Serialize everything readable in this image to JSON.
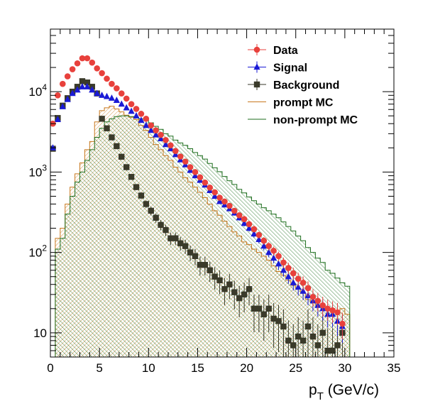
{
  "chart_data": {
    "type": "scatter",
    "title": "",
    "xlabel": "p",
    "xlabel_sub": "T",
    "xlabel_unit": " (GeV/c)",
    "ylabel": "",
    "xlim": [
      0,
      35
    ],
    "ylim": [
      5,
      60000
    ],
    "y_scale": "log",
    "grid": false,
    "legend_position": "top-right",
    "x_ticks": [
      0,
      5,
      10,
      15,
      20,
      25,
      30,
      35
    ],
    "x_tick_labels": [
      "0",
      "5",
      "10",
      "15",
      "20",
      "25",
      "30",
      "35"
    ],
    "y_ticks": [
      {
        "value": 10,
        "base": "10",
        "exp": ""
      },
      {
        "value": 100,
        "base": "10",
        "exp": "2"
      },
      {
        "value": 1000,
        "base": "10",
        "exp": "3"
      },
      {
        "value": 10000,
        "base": "10",
        "exp": "4"
      }
    ],
    "series": [
      {
        "name": "Data",
        "kind": "markers",
        "marker": "circle",
        "color": "#e8413c",
        "x": [
          0.25,
          0.75,
          1.25,
          1.75,
          2.25,
          2.75,
          3.25,
          3.75,
          4.25,
          4.75,
          5.25,
          5.75,
          6.25,
          6.75,
          7.25,
          7.75,
          8.25,
          8.75,
          9.25,
          9.75,
          10.25,
          10.75,
          11.25,
          11.75,
          12.25,
          12.75,
          13.25,
          13.75,
          14.25,
          14.75,
          15.25,
          15.75,
          16.25,
          16.75,
          17.25,
          17.75,
          18.25,
          18.75,
          19.25,
          19.75,
          20.25,
          20.75,
          21.25,
          21.75,
          22.25,
          22.75,
          23.25,
          23.75,
          24.25,
          24.75,
          25.25,
          25.75,
          26.25,
          26.75,
          27.25,
          27.75,
          28.25,
          28.75,
          29.25,
          29.75
        ],
        "y": [
          4000,
          9000,
          12500,
          15500,
          19000,
          22500,
          26000,
          26000,
          23000,
          19500,
          17000,
          14500,
          12500,
          11000,
          9500,
          8200,
          7000,
          6100,
          5300,
          4600,
          3800,
          3300,
          2900,
          2500,
          2150,
          1830,
          1560,
          1350,
          1150,
          1000,
          860,
          740,
          640,
          560,
          480,
          430,
          380,
          330,
          290,
          260,
          225,
          195,
          165,
          140,
          120,
          105,
          90,
          75,
          64,
          55,
          47,
          42,
          36,
          28,
          25,
          22,
          20,
          19,
          18,
          13
        ]
      },
      {
        "name": "Signal",
        "kind": "markers",
        "marker": "triangle",
        "color": "#1a1ad6",
        "x": [
          0.25,
          0.75,
          1.25,
          1.75,
          2.25,
          2.75,
          3.25,
          3.75,
          4.25,
          4.75,
          5.25,
          5.75,
          6.25,
          6.75,
          7.25,
          7.75,
          8.25,
          8.75,
          9.25,
          9.75,
          10.25,
          10.75,
          11.25,
          11.75,
          12.25,
          12.75,
          13.25,
          13.75,
          14.25,
          14.75,
          15.25,
          15.75,
          16.25,
          16.75,
          17.25,
          17.75,
          18.25,
          18.75,
          19.25,
          19.75,
          20.25,
          20.75,
          21.25,
          21.75,
          22.25,
          22.75,
          23.25,
          23.75,
          24.25,
          24.75,
          25.25,
          25.75,
          26.25,
          26.75,
          27.25,
          27.75,
          28.25,
          28.75,
          29.25,
          29.75
        ],
        "y": [
          2000,
          4500,
          6500,
          8000,
          9500,
          10500,
          11500,
          11500,
          10500,
          9500,
          9000,
          8700,
          8300,
          7800,
          7000,
          6300,
          5700,
          5000,
          4400,
          3800,
          3300,
          2900,
          2600,
          2200,
          1950,
          1650,
          1420,
          1230,
          1050,
          900,
          790,
          690,
          590,
          500,
          430,
          390,
          350,
          310,
          270,
          230,
          200,
          170,
          145,
          120,
          100,
          85,
          72,
          60,
          50,
          42,
          37,
          33,
          29,
          25,
          22,
          20,
          17,
          17,
          14,
          12
        ]
      },
      {
        "name": "Background",
        "kind": "markers",
        "marker": "square",
        "color": "#3a3a2a",
        "x": [
          0.25,
          0.75,
          1.25,
          1.75,
          2.25,
          2.75,
          3.25,
          3.75,
          4.25,
          4.75,
          5.25,
          5.75,
          6.25,
          6.75,
          7.25,
          7.75,
          8.25,
          8.75,
          9.25,
          9.75,
          10.25,
          10.75,
          11.25,
          11.75,
          12.25,
          12.75,
          13.25,
          13.75,
          14.25,
          14.75,
          15.25,
          15.75,
          16.25,
          16.75,
          17.25,
          17.75,
          18.25,
          18.75,
          19.25,
          19.75,
          20.25,
          20.75,
          21.25,
          21.75,
          22.25,
          22.75,
          23.25,
          23.75,
          24.25,
          24.75,
          25.25,
          25.75,
          26.25,
          26.75,
          27.25,
          27.75,
          28.25,
          28.75,
          29.25,
          29.75
        ],
        "y": [
          1950,
          4700,
          6700,
          8300,
          10000,
          11500,
          13500,
          13000,
          11500,
          9500,
          4600,
          3500,
          2700,
          2100,
          1550,
          1150,
          870,
          650,
          510,
          400,
          330,
          270,
          220,
          190,
          150,
          150,
          130,
          120,
          100,
          90,
          70,
          70,
          60,
          50,
          45,
          35,
          40,
          32,
          27,
          30,
          35,
          20,
          20,
          17,
          20,
          15,
          14,
          12,
          8,
          7,
          9,
          8,
          12,
          9,
          7,
          10,
          6,
          6,
          7,
          10
        ]
      },
      {
        "name": "prompt MC",
        "kind": "step",
        "color": "#c8781e",
        "edges": [
          0.5,
          1,
          1.5,
          2,
          2.5,
          3,
          3.5,
          4,
          4.5,
          5,
          5.5,
          6,
          6.5,
          7,
          7.5,
          8,
          8.5,
          9,
          9.5,
          10,
          10.5,
          11,
          11.5,
          12,
          12.5,
          13,
          13.5,
          14,
          14.5,
          15,
          15.5,
          16,
          16.5,
          17,
          17.5,
          18,
          18.5,
          19,
          19.5,
          20,
          20.5,
          21,
          21.5,
          22,
          22.5,
          23,
          23.5,
          24,
          24.5,
          25,
          25.5,
          26,
          26.5,
          27,
          27.5,
          28,
          28.5,
          29,
          29.5,
          30,
          30.5
        ],
        "values": [
          150,
          200,
          400,
          650,
          950,
          1300,
          1900,
          2400,
          4200,
          5800,
          6300,
          6600,
          6100,
          5600,
          5100,
          4800,
          4500,
          3800,
          3300,
          2700,
          2200,
          1900,
          1600,
          1400,
          1150,
          1000,
          850,
          750,
          650,
          560,
          480,
          400,
          330,
          290,
          245,
          210,
          180,
          160,
          135,
          125,
          110,
          100,
          90,
          80,
          68,
          58,
          52,
          45,
          39,
          35,
          31,
          26,
          24,
          22,
          21,
          20,
          20,
          19,
          20,
          17
        ]
      },
      {
        "name": "non-prompt MC",
        "kind": "step",
        "color": "#1e6e1e",
        "edges": [
          0.5,
          1,
          1.5,
          2,
          2.5,
          3,
          3.5,
          4,
          4.5,
          5,
          5.5,
          6,
          6.5,
          7,
          7.5,
          8,
          8.5,
          9,
          9.5,
          10,
          10.5,
          11,
          11.5,
          12,
          12.5,
          13,
          13.5,
          14,
          14.5,
          15,
          15.5,
          16,
          16.5,
          17,
          17.5,
          18,
          18.5,
          19,
          19.5,
          20,
          20.5,
          21,
          21.5,
          22,
          22.5,
          23,
          23.5,
          24,
          24.5,
          25,
          25.5,
          26,
          26.5,
          27,
          27.5,
          28,
          28.5,
          29,
          29.5,
          30,
          30.5
        ],
        "values": [
          110,
          150,
          300,
          500,
          750,
          1000,
          1400,
          1900,
          2700,
          3500,
          4200,
          4600,
          4900,
          5000,
          5000,
          4900,
          4800,
          4600,
          4400,
          4100,
          3700,
          3400,
          3000,
          2800,
          2500,
          2300,
          2150,
          1950,
          1750,
          1600,
          1450,
          1280,
          1130,
          1010,
          880,
          780,
          700,
          610,
          550,
          490,
          440,
          400,
          360,
          330,
          300,
          270,
          240,
          210,
          185,
          160,
          140,
          115,
          100,
          85,
          75,
          60,
          55,
          48,
          42,
          38
        ]
      }
    ],
    "legend": [
      {
        "label": "Data",
        "marker": "circle",
        "color": "#e8413c"
      },
      {
        "label": "Signal",
        "marker": "triangle",
        "color": "#1a1ad6"
      },
      {
        "label": "Background",
        "marker": "square",
        "color": "#3a3a2a"
      },
      {
        "label": "prompt MC",
        "marker": "line",
        "color": "#c8781e"
      },
      {
        "label": "non-prompt MC",
        "marker": "line",
        "color": "#1e6e1e"
      }
    ]
  }
}
